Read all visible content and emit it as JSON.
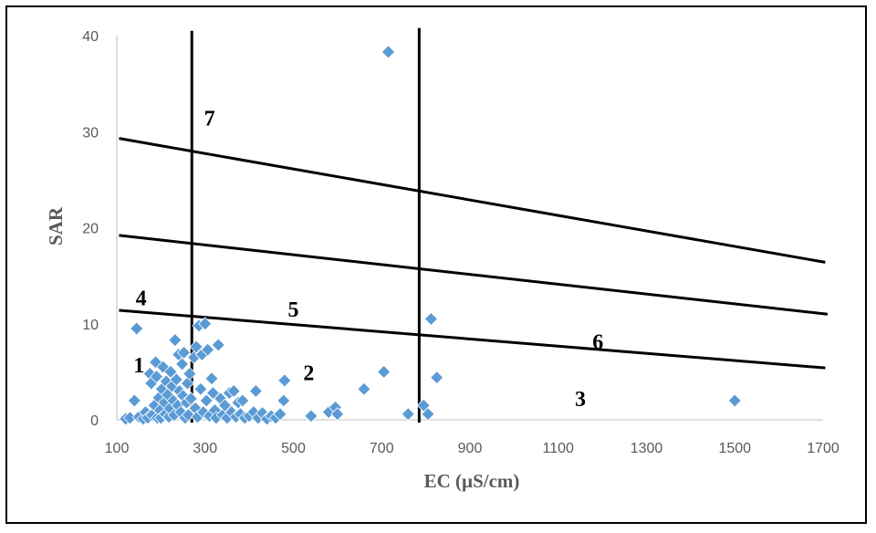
{
  "chart_data": {
    "type": "scatter",
    "xlabel": "EC (µS/cm)",
    "ylabel": "SAR",
    "xlim": [
      100,
      1700
    ],
    "ylim": [
      0,
      40
    ],
    "x_ticks": [
      "100",
      "300",
      "500",
      "700",
      "900",
      "1100",
      "1300",
      "1500",
      "1700"
    ],
    "y_ticks": [
      "0",
      "10",
      "20",
      "30",
      "40"
    ],
    "grid": false,
    "marker": "diamond",
    "marker_color": "#5B9BD5",
    "zone_labels": [
      "1",
      "2",
      "3",
      "4",
      "5",
      "6",
      "7"
    ],
    "divider_lines": [
      {
        "x": [
          270,
          270
        ],
        "y": [
          -0.3,
          40.5
        ]
      },
      {
        "x": [
          785,
          785
        ],
        "y": [
          -0.3,
          40.8
        ]
      },
      {
        "x": [
          105,
          1705
        ],
        "y": [
          11.4,
          5.4
        ]
      },
      {
        "x": [
          105,
          1710
        ],
        "y": [
          19.2,
          11.0
        ]
      },
      {
        "x": [
          105,
          1705
        ],
        "y": [
          29.3,
          16.4
        ]
      }
    ],
    "points": [
      [
        120,
        0.1
      ],
      [
        130,
        0.2
      ],
      [
        140,
        2.0
      ],
      [
        145,
        9.5
      ],
      [
        150,
        0.3
      ],
      [
        160,
        0.1
      ],
      [
        165,
        0.8
      ],
      [
        170,
        0.2
      ],
      [
        175,
        4.8
      ],
      [
        178,
        3.8
      ],
      [
        180,
        0.5
      ],
      [
        185,
        1.5
      ],
      [
        188,
        6.0
      ],
      [
        190,
        4.5
      ],
      [
        192,
        0.2
      ],
      [
        195,
        2.3
      ],
      [
        198,
        1.0
      ],
      [
        200,
        0.2
      ],
      [
        202,
        3.2
      ],
      [
        205,
        5.5
      ],
      [
        208,
        1.8
      ],
      [
        210,
        0.6
      ],
      [
        212,
        4.0
      ],
      [
        215,
        2.6
      ],
      [
        218,
        0.3
      ],
      [
        220,
        1.2
      ],
      [
        222,
        5.0
      ],
      [
        225,
        3.5
      ],
      [
        228,
        2.0
      ],
      [
        230,
        0.5
      ],
      [
        232,
        8.3
      ],
      [
        235,
        4.2
      ],
      [
        238,
        1.5
      ],
      [
        240,
        6.8
      ],
      [
        242,
        3.0
      ],
      [
        245,
        0.8
      ],
      [
        248,
        5.8
      ],
      [
        250,
        2.5
      ],
      [
        252,
        7.0
      ],
      [
        255,
        0.2
      ],
      [
        258,
        1.8
      ],
      [
        260,
        3.8
      ],
      [
        262,
        0.5
      ],
      [
        265,
        4.8
      ],
      [
        268,
        2.2
      ],
      [
        275,
        6.5
      ],
      [
        278,
        1.2
      ],
      [
        280,
        7.6
      ],
      [
        283,
        0.3
      ],
      [
        286,
        9.8
      ],
      [
        290,
        3.2
      ],
      [
        293,
        6.8
      ],
      [
        296,
        0.8
      ],
      [
        300,
        10.0
      ],
      [
        303,
        2.0
      ],
      [
        306,
        7.3
      ],
      [
        310,
        0.4
      ],
      [
        315,
        4.3
      ],
      [
        318,
        2.8
      ],
      [
        322,
        1.0
      ],
      [
        325,
        0.2
      ],
      [
        330,
        7.8
      ],
      [
        335,
        2.2
      ],
      [
        340,
        0.5
      ],
      [
        345,
        1.5
      ],
      [
        350,
        0.2
      ],
      [
        355,
        2.8
      ],
      [
        360,
        0.8
      ],
      [
        365,
        3.0
      ],
      [
        370,
        0.3
      ],
      [
        375,
        1.8
      ],
      [
        380,
        0.6
      ],
      [
        385,
        2.0
      ],
      [
        390,
        0.2
      ],
      [
        400,
        0.4
      ],
      [
        410,
        0.8
      ],
      [
        415,
        3.0
      ],
      [
        420,
        0.2
      ],
      [
        430,
        0.7
      ],
      [
        440,
        0.1
      ],
      [
        450,
        0.4
      ],
      [
        460,
        0.2
      ],
      [
        470,
        0.6
      ],
      [
        478,
        2.0
      ],
      [
        480,
        4.1
      ],
      [
        540,
        0.4
      ],
      [
        580,
        0.8
      ],
      [
        595,
        1.3
      ],
      [
        600,
        0.6
      ],
      [
        660,
        3.2
      ],
      [
        705,
        5.0
      ],
      [
        715,
        38.3
      ],
      [
        760,
        0.6
      ],
      [
        795,
        1.5
      ],
      [
        805,
        0.6
      ],
      [
        812,
        10.5
      ],
      [
        825,
        4.4
      ],
      [
        1500,
        2.0
      ]
    ]
  }
}
